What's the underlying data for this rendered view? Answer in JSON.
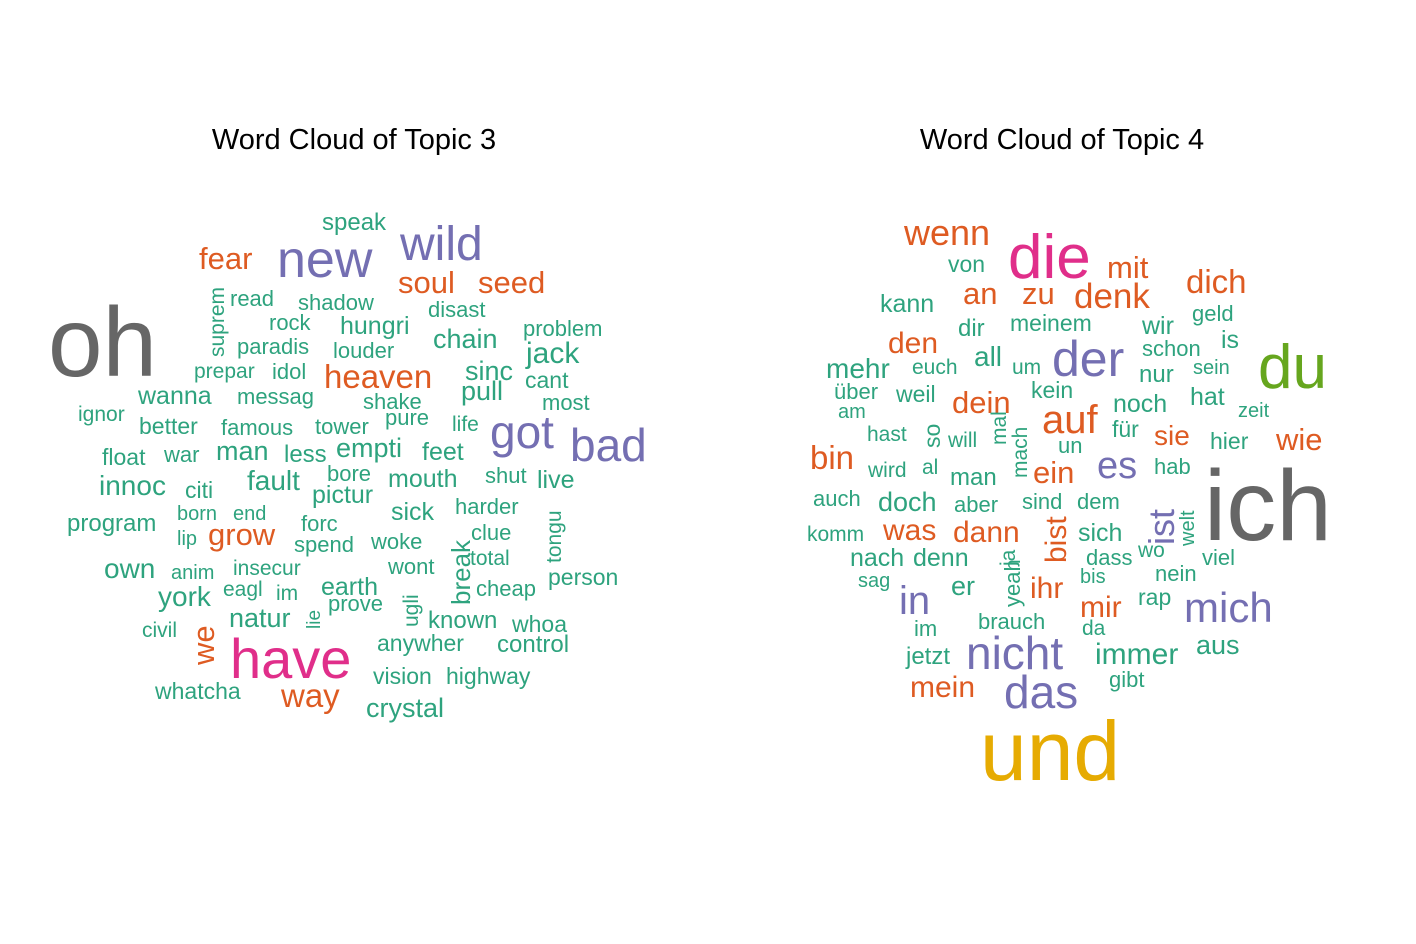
{
  "colors": {
    "green": "#2ea37e",
    "orange": "#de5b22",
    "purple": "#746fb2",
    "gray": "#666666",
    "magenta": "#e02e8a",
    "lime": "#66a61e",
    "gold": "#e6ab02"
  },
  "chart_data": [
    {
      "type": "wordcloud",
      "title": "Word Cloud of Topic  3",
      "words": [
        {
          "text": "oh",
          "color": "gray",
          "weight": 10
        },
        {
          "text": "have",
          "color": "magenta",
          "weight": 6
        },
        {
          "text": "new",
          "color": "purple",
          "weight": 5
        },
        {
          "text": "wild",
          "color": "purple",
          "weight": 5
        },
        {
          "text": "bad",
          "color": "purple",
          "weight": 4.5
        },
        {
          "text": "got",
          "color": "purple",
          "weight": 4.5
        },
        {
          "text": "heaven",
          "color": "orange",
          "weight": 3
        },
        {
          "text": "soul",
          "color": "orange",
          "weight": 3
        },
        {
          "text": "seed",
          "color": "orange",
          "weight": 3
        },
        {
          "text": "fear",
          "color": "orange",
          "weight": 3
        },
        {
          "text": "grow",
          "color": "orange",
          "weight": 3
        },
        {
          "text": "way",
          "color": "orange",
          "weight": 3
        },
        {
          "text": "we",
          "color": "orange",
          "weight": 3
        },
        {
          "text": "speak",
          "color": "green",
          "weight": 2
        },
        {
          "text": "read",
          "color": "green",
          "weight": 2
        },
        {
          "text": "shadow",
          "color": "green",
          "weight": 2
        },
        {
          "text": "disast",
          "color": "green",
          "weight": 2
        },
        {
          "text": "suprem",
          "color": "green",
          "weight": 2
        },
        {
          "text": "rock",
          "color": "green",
          "weight": 2
        },
        {
          "text": "hungri",
          "color": "green",
          "weight": 2
        },
        {
          "text": "chain",
          "color": "green",
          "weight": 2
        },
        {
          "text": "problem",
          "color": "green",
          "weight": 2
        },
        {
          "text": "paradis",
          "color": "green",
          "weight": 2
        },
        {
          "text": "louder",
          "color": "green",
          "weight": 2
        },
        {
          "text": "jack",
          "color": "green",
          "weight": 2
        },
        {
          "text": "prepar",
          "color": "green",
          "weight": 2
        },
        {
          "text": "idol",
          "color": "green",
          "weight": 2
        },
        {
          "text": "sinc",
          "color": "green",
          "weight": 2
        },
        {
          "text": "pull",
          "color": "green",
          "weight": 2
        },
        {
          "text": "cant",
          "color": "green",
          "weight": 2
        },
        {
          "text": "wanna",
          "color": "green",
          "weight": 2
        },
        {
          "text": "messag",
          "color": "green",
          "weight": 2
        },
        {
          "text": "shake",
          "color": "green",
          "weight": 2
        },
        {
          "text": "most",
          "color": "green",
          "weight": 2
        },
        {
          "text": "ignor",
          "color": "green",
          "weight": 2
        },
        {
          "text": "better",
          "color": "green",
          "weight": 2
        },
        {
          "text": "famous",
          "color": "green",
          "weight": 2
        },
        {
          "text": "tower",
          "color": "green",
          "weight": 2
        },
        {
          "text": "pure",
          "color": "green",
          "weight": 2
        },
        {
          "text": "life",
          "color": "green",
          "weight": 2
        },
        {
          "text": "float",
          "color": "green",
          "weight": 2
        },
        {
          "text": "war",
          "color": "green",
          "weight": 2
        },
        {
          "text": "man",
          "color": "green",
          "weight": 2
        },
        {
          "text": "less",
          "color": "green",
          "weight": 2
        },
        {
          "text": "empti",
          "color": "green",
          "weight": 2
        },
        {
          "text": "feet",
          "color": "green",
          "weight": 2
        },
        {
          "text": "innoc",
          "color": "green",
          "weight": 2
        },
        {
          "text": "citi",
          "color": "green",
          "weight": 2
        },
        {
          "text": "fault",
          "color": "green",
          "weight": 2
        },
        {
          "text": "bore",
          "color": "green",
          "weight": 2
        },
        {
          "text": "mouth",
          "color": "green",
          "weight": 2
        },
        {
          "text": "shut",
          "color": "green",
          "weight": 2
        },
        {
          "text": "live",
          "color": "green",
          "weight": 2
        },
        {
          "text": "pictur",
          "color": "green",
          "weight": 2
        },
        {
          "text": "harder",
          "color": "green",
          "weight": 2
        },
        {
          "text": "program",
          "color": "green",
          "weight": 2
        },
        {
          "text": "born",
          "color": "green",
          "weight": 2
        },
        {
          "text": "end",
          "color": "green",
          "weight": 2
        },
        {
          "text": "lip",
          "color": "green",
          "weight": 2
        },
        {
          "text": "forc",
          "color": "green",
          "weight": 2
        },
        {
          "text": "sick",
          "color": "green",
          "weight": 2
        },
        {
          "text": "clue",
          "color": "green",
          "weight": 2
        },
        {
          "text": "tongu",
          "color": "green",
          "weight": 2
        },
        {
          "text": "spend",
          "color": "green",
          "weight": 2
        },
        {
          "text": "woke",
          "color": "green",
          "weight": 2
        },
        {
          "text": "break",
          "color": "green",
          "weight": 2
        },
        {
          "text": "total",
          "color": "green",
          "weight": 2
        },
        {
          "text": "own",
          "color": "green",
          "weight": 2
        },
        {
          "text": "anim",
          "color": "green",
          "weight": 2
        },
        {
          "text": "insecur",
          "color": "green",
          "weight": 2
        },
        {
          "text": "wont",
          "color": "green",
          "weight": 2
        },
        {
          "text": "person",
          "color": "green",
          "weight": 2
        },
        {
          "text": "york",
          "color": "green",
          "weight": 2
        },
        {
          "text": "eagl",
          "color": "green",
          "weight": 2
        },
        {
          "text": "im",
          "color": "green",
          "weight": 2
        },
        {
          "text": "earth",
          "color": "green",
          "weight": 2
        },
        {
          "text": "cheap",
          "color": "green",
          "weight": 2
        },
        {
          "text": "natur",
          "color": "green",
          "weight": 2
        },
        {
          "text": "lie",
          "color": "green",
          "weight": 2
        },
        {
          "text": "prove",
          "color": "green",
          "weight": 2
        },
        {
          "text": "ugli",
          "color": "green",
          "weight": 2
        },
        {
          "text": "known",
          "color": "green",
          "weight": 2
        },
        {
          "text": "whoa",
          "color": "green",
          "weight": 2
        },
        {
          "text": "civil",
          "color": "green",
          "weight": 2
        },
        {
          "text": "anywher",
          "color": "green",
          "weight": 2
        },
        {
          "text": "control",
          "color": "green",
          "weight": 2
        },
        {
          "text": "vision",
          "color": "green",
          "weight": 2
        },
        {
          "text": "highway",
          "color": "green",
          "weight": 2
        },
        {
          "text": "whatcha",
          "color": "green",
          "weight": 2
        },
        {
          "text": "crystal",
          "color": "green",
          "weight": 2
        }
      ]
    },
    {
      "type": "wordcloud",
      "title": "Word Cloud of Topic  4",
      "words": [
        {
          "text": "ich",
          "color": "gray",
          "weight": 10
        },
        {
          "text": "und",
          "color": "gold",
          "weight": 8
        },
        {
          "text": "die",
          "color": "magenta",
          "weight": 6
        },
        {
          "text": "du",
          "color": "lime",
          "weight": 6
        },
        {
          "text": "der",
          "color": "purple",
          "weight": 5
        },
        {
          "text": "nicht",
          "color": "purple",
          "weight": 4.5
        },
        {
          "text": "das",
          "color": "purple",
          "weight": 4.5
        },
        {
          "text": "mich",
          "color": "purple",
          "weight": 4
        },
        {
          "text": "in",
          "color": "purple",
          "weight": 4
        },
        {
          "text": "es",
          "color": "purple",
          "weight": 4
        },
        {
          "text": "ist",
          "color": "purple",
          "weight": 4
        },
        {
          "text": "wenn",
          "color": "orange",
          "weight": 3
        },
        {
          "text": "mit",
          "color": "orange",
          "weight": 3
        },
        {
          "text": "dich",
          "color": "orange",
          "weight": 3
        },
        {
          "text": "an",
          "color": "orange",
          "weight": 3
        },
        {
          "text": "zu",
          "color": "orange",
          "weight": 3
        },
        {
          "text": "denk",
          "color": "orange",
          "weight": 3
        },
        {
          "text": "den",
          "color": "orange",
          "weight": 3
        },
        {
          "text": "auf",
          "color": "orange",
          "weight": 3.5
        },
        {
          "text": "dein",
          "color": "orange",
          "weight": 3
        },
        {
          "text": "bin",
          "color": "orange",
          "weight": 3
        },
        {
          "text": "sie",
          "color": "orange",
          "weight": 3
        },
        {
          "text": "wie",
          "color": "orange",
          "weight": 3
        },
        {
          "text": "ein",
          "color": "orange",
          "weight": 3
        },
        {
          "text": "was",
          "color": "orange",
          "weight": 3
        },
        {
          "text": "dann",
          "color": "orange",
          "weight": 3
        },
        {
          "text": "bist",
          "color": "orange",
          "weight": 3
        },
        {
          "text": "ihr",
          "color": "orange",
          "weight": 3
        },
        {
          "text": "mir",
          "color": "orange",
          "weight": 3
        },
        {
          "text": "mein",
          "color": "orange",
          "weight": 3
        },
        {
          "text": "von",
          "color": "green",
          "weight": 2
        },
        {
          "text": "kann",
          "color": "green",
          "weight": 2
        },
        {
          "text": "geld",
          "color": "green",
          "weight": 2
        },
        {
          "text": "dir",
          "color": "green",
          "weight": 2
        },
        {
          "text": "meinem",
          "color": "green",
          "weight": 2
        },
        {
          "text": "wir",
          "color": "green",
          "weight": 2
        },
        {
          "text": "is",
          "color": "green",
          "weight": 2
        },
        {
          "text": "schon",
          "color": "green",
          "weight": 2
        },
        {
          "text": "mehr",
          "color": "green",
          "weight": 2
        },
        {
          "text": "euch",
          "color": "green",
          "weight": 2
        },
        {
          "text": "all",
          "color": "green",
          "weight": 2
        },
        {
          "text": "um",
          "color": "green",
          "weight": 2
        },
        {
          "text": "nur",
          "color": "green",
          "weight": 2
        },
        {
          "text": "sein",
          "color": "green",
          "weight": 2
        },
        {
          "text": "über",
          "color": "green",
          "weight": 2
        },
        {
          "text": "weil",
          "color": "green",
          "weight": 2
        },
        {
          "text": "kein",
          "color": "green",
          "weight": 2
        },
        {
          "text": "hat",
          "color": "green",
          "weight": 2
        },
        {
          "text": "am",
          "color": "green",
          "weight": 2
        },
        {
          "text": "noch",
          "color": "green",
          "weight": 2
        },
        {
          "text": "zeit",
          "color": "green",
          "weight": 2
        },
        {
          "text": "hast",
          "color": "green",
          "weight": 2
        },
        {
          "text": "so",
          "color": "green",
          "weight": 2
        },
        {
          "text": "will",
          "color": "green",
          "weight": 2
        },
        {
          "text": "mal",
          "color": "green",
          "weight": 2
        },
        {
          "text": "mach",
          "color": "green",
          "weight": 2
        },
        {
          "text": "un",
          "color": "green",
          "weight": 2
        },
        {
          "text": "für",
          "color": "green",
          "weight": 2
        },
        {
          "text": "hier",
          "color": "green",
          "weight": 2
        },
        {
          "text": "wird",
          "color": "green",
          "weight": 2
        },
        {
          "text": "al",
          "color": "green",
          "weight": 2
        },
        {
          "text": "man",
          "color": "green",
          "weight": 2
        },
        {
          "text": "hab",
          "color": "green",
          "weight": 2
        },
        {
          "text": "auch",
          "color": "green",
          "weight": 2
        },
        {
          "text": "doch",
          "color": "green",
          "weight": 2
        },
        {
          "text": "aber",
          "color": "green",
          "weight": 2
        },
        {
          "text": "sind",
          "color": "green",
          "weight": 2
        },
        {
          "text": "dem",
          "color": "green",
          "weight": 2
        },
        {
          "text": "komm",
          "color": "green",
          "weight": 2
        },
        {
          "text": "sich",
          "color": "green",
          "weight": 2
        },
        {
          "text": "welt",
          "color": "green",
          "weight": 2
        },
        {
          "text": "nach",
          "color": "green",
          "weight": 2
        },
        {
          "text": "denn",
          "color": "green",
          "weight": 2
        },
        {
          "text": "ja",
          "color": "green",
          "weight": 2
        },
        {
          "text": "dass",
          "color": "green",
          "weight": 2
        },
        {
          "text": "wo",
          "color": "green",
          "weight": 2
        },
        {
          "text": "viel",
          "color": "green",
          "weight": 2
        },
        {
          "text": "sag",
          "color": "green",
          "weight": 2
        },
        {
          "text": "er",
          "color": "green",
          "weight": 2
        },
        {
          "text": "yeah",
          "color": "green",
          "weight": 2
        },
        {
          "text": "bis",
          "color": "green",
          "weight": 2
        },
        {
          "text": "nein",
          "color": "green",
          "weight": 2
        },
        {
          "text": "rap",
          "color": "green",
          "weight": 2
        },
        {
          "text": "im",
          "color": "green",
          "weight": 2
        },
        {
          "text": "brauch",
          "color": "green",
          "weight": 2
        },
        {
          "text": "da",
          "color": "green",
          "weight": 2
        },
        {
          "text": "immer",
          "color": "green",
          "weight": 2
        },
        {
          "text": "aus",
          "color": "green",
          "weight": 2
        },
        {
          "text": "jetzt",
          "color": "green",
          "weight": 2
        },
        {
          "text": "gibt",
          "color": "green",
          "weight": 2
        }
      ]
    }
  ]
}
